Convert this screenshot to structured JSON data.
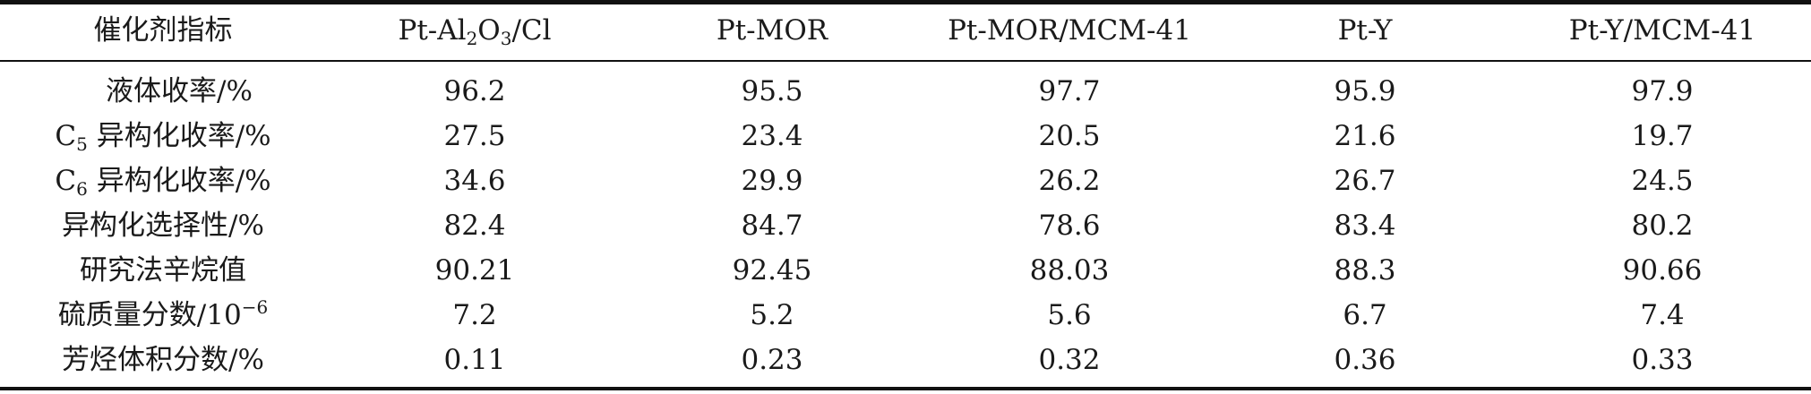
{
  "table": {
    "headers": [
      "催化剂指标",
      "Pt-Al",
      "Pt-MOR",
      "Pt-MOR/MCM-41",
      "Pt-Y",
      "Pt-Y/MCM-41"
    ],
    "header_al2o3": {
      "prefix": "Pt-Al",
      "sub1": "2",
      "mid": "O",
      "sub2": "3",
      "suffix": "/Cl"
    },
    "rows": [
      {
        "label": "液体收率/%",
        "values": [
          "96.2",
          "95.5",
          "97.7",
          "95.9",
          "97.9"
        ]
      },
      {
        "label_prefix": "C",
        "label_sub": "5",
        "label": " 异构化收率/%",
        "values": [
          "27.5",
          "23.4",
          "20.5",
          "21.6",
          "19.7"
        ]
      },
      {
        "label_prefix": "C",
        "label_sub": "6",
        "label": " 异构化收率/%",
        "values": [
          "34.6",
          "29.9",
          "26.2",
          "26.7",
          "24.5"
        ]
      },
      {
        "label": "异构化选择性/%",
        "values": [
          "82.4",
          "84.7",
          "78.6",
          "83.4",
          "80.2"
        ]
      },
      {
        "label": "研究法辛烷值",
        "values": [
          "90.21",
          "92.45",
          "88.03",
          "88.3",
          "90.66"
        ]
      },
      {
        "label": "硫质量分数/10",
        "label_sup": "−6",
        "values": [
          "7.2",
          "5.2",
          "5.6",
          "6.7",
          "7.4"
        ]
      },
      {
        "label": "芳烃体积分数/%",
        "values": [
          "0.11",
          "0.23",
          "0.32",
          "0.36",
          "0.33"
        ]
      }
    ]
  }
}
